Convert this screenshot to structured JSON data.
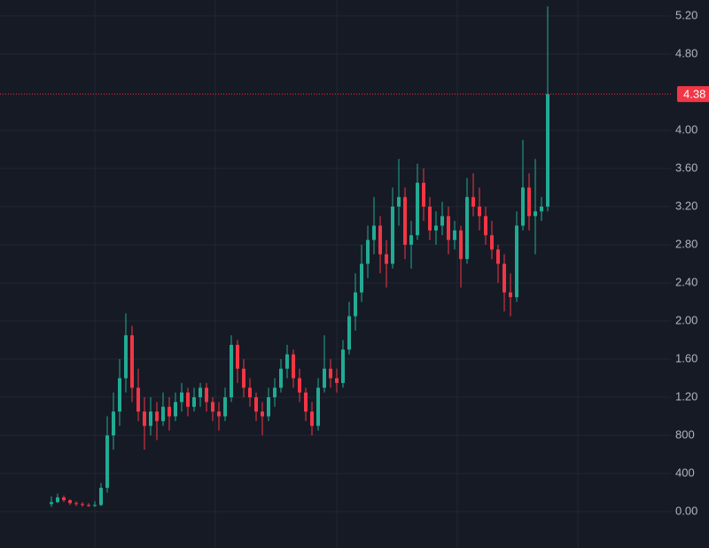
{
  "chart_data": {
    "type": "candlestick",
    "ylim": [
      -381,
      5367
    ],
    "yticks": [
      {
        "value": 0,
        "label": "0.00"
      },
      400,
      800,
      {
        "value": 1200,
        "label": "1.20"
      },
      {
        "value": 1600,
        "label": "1.60"
      },
      {
        "value": 2000,
        "label": "2.00"
      },
      {
        "value": 2400,
        "label": "2.40"
      },
      {
        "value": 2800,
        "label": "2.80"
      },
      {
        "value": 3200,
        "label": "3.20"
      },
      {
        "value": 3600,
        "label": "3.60"
      },
      {
        "value": 4000,
        "label": "4.00"
      },
      {
        "value": 4800,
        "label": "4.80"
      },
      {
        "value": 5200,
        "label": "5.20"
      }
    ],
    "grid": true,
    "up_color": "#22ab94",
    "down_color": "#f23645",
    "last_price": {
      "value": 4380,
      "label": "4.38"
    },
    "candles": [
      [
        80,
        160,
        50,
        100
      ],
      [
        100,
        190,
        90,
        150
      ],
      [
        150,
        170,
        100,
        120
      ],
      [
        120,
        130,
        70,
        90
      ],
      [
        90,
        110,
        60,
        80
      ],
      [
        80,
        100,
        50,
        70
      ],
      [
        70,
        90,
        50,
        60
      ],
      [
        60,
        110,
        50,
        70
      ],
      [
        70,
        300,
        60,
        250
      ],
      [
        250,
        1000,
        200,
        800
      ],
      [
        800,
        1250,
        650,
        1050
      ],
      [
        1050,
        1600,
        900,
        1400
      ],
      [
        1400,
        2080,
        1250,
        1850
      ],
      [
        1850,
        1950,
        1150,
        1300
      ],
      [
        1300,
        1500,
        950,
        1050
      ],
      [
        1050,
        1200,
        650,
        900
      ],
      [
        900,
        1200,
        800,
        1050
      ],
      [
        1050,
        1150,
        750,
        950
      ],
      [
        950,
        1250,
        900,
        1100
      ],
      [
        1100,
        1200,
        850,
        1000
      ],
      [
        1000,
        1250,
        950,
        1150
      ],
      [
        1150,
        1350,
        1050,
        1250
      ],
      [
        1250,
        1300,
        1000,
        1100
      ],
      [
        1100,
        1300,
        1050,
        1200
      ],
      [
        1200,
        1350,
        1100,
        1300
      ],
      [
        1300,
        1350,
        1050,
        1150
      ],
      [
        1150,
        1200,
        950,
        1050
      ],
      [
        1050,
        1150,
        850,
        1000
      ],
      [
        1000,
        1300,
        950,
        1200
      ],
      [
        1200,
        1850,
        1150,
        1750
      ],
      [
        1750,
        1800,
        1350,
        1500
      ],
      [
        1500,
        1600,
        1200,
        1300
      ],
      [
        1300,
        1400,
        1100,
        1200
      ],
      [
        1200,
        1250,
        950,
        1050
      ],
      [
        1050,
        1150,
        800,
        1000
      ],
      [
        1000,
        1300,
        950,
        1200
      ],
      [
        1200,
        1400,
        1100,
        1300
      ],
      [
        1300,
        1600,
        1250,
        1500
      ],
      [
        1500,
        1750,
        1400,
        1650
      ],
      [
        1650,
        1700,
        1300,
        1400
      ],
      [
        1400,
        1500,
        1150,
        1250
      ],
      [
        1250,
        1300,
        950,
        1050
      ],
      [
        1050,
        1150,
        800,
        900
      ],
      [
        900,
        1400,
        850,
        1300
      ],
      [
        1300,
        1850,
        1250,
        1500
      ],
      [
        1500,
        1600,
        1300,
        1400
      ],
      [
        1400,
        1500,
        1250,
        1350
      ],
      [
        1350,
        1800,
        1300,
        1700
      ],
      [
        1700,
        2200,
        1650,
        2050
      ],
      [
        2050,
        2500,
        1900,
        2300
      ],
      [
        2300,
        2800,
        2200,
        2600
      ],
      [
        2600,
        3000,
        2450,
        2850
      ],
      [
        2850,
        3300,
        2700,
        3000
      ],
      [
        3000,
        3100,
        2500,
        2700
      ],
      [
        2700,
        2850,
        2350,
        2600
      ],
      [
        2600,
        3400,
        2550,
        3200
      ],
      [
        3200,
        3700,
        3000,
        3300
      ],
      [
        3300,
        3400,
        2650,
        2800
      ],
      [
        2800,
        3050,
        2550,
        2900
      ],
      [
        2900,
        3650,
        2850,
        3450
      ],
      [
        3450,
        3600,
        3050,
        3200
      ],
      [
        3200,
        3300,
        2850,
        2950
      ],
      [
        2950,
        3150,
        2800,
        3000
      ],
      [
        3000,
        3250,
        2900,
        3100
      ],
      [
        3100,
        3200,
        2700,
        2850
      ],
      [
        2850,
        3050,
        2750,
        2950
      ],
      [
        2950,
        3000,
        2350,
        2650
      ],
      [
        2650,
        3500,
        2600,
        3300
      ],
      [
        3300,
        3550,
        3100,
        3200
      ],
      [
        3200,
        3400,
        2950,
        3100
      ],
      [
        3100,
        3200,
        2800,
        2900
      ],
      [
        2900,
        3050,
        2650,
        2750
      ],
      [
        2750,
        2800,
        2400,
        2600
      ],
      [
        2600,
        2700,
        2100,
        2300
      ],
      [
        2300,
        2500,
        2050,
        2250
      ],
      [
        2250,
        3150,
        2200,
        3000
      ],
      [
        3000,
        3900,
        2950,
        3400
      ],
      [
        3400,
        3550,
        2950,
        3100
      ],
      [
        3100,
        3700,
        2700,
        3150
      ],
      [
        3150,
        3300,
        3050,
        3200
      ],
      [
        3200,
        5300,
        3150,
        4380
      ]
    ]
  }
}
